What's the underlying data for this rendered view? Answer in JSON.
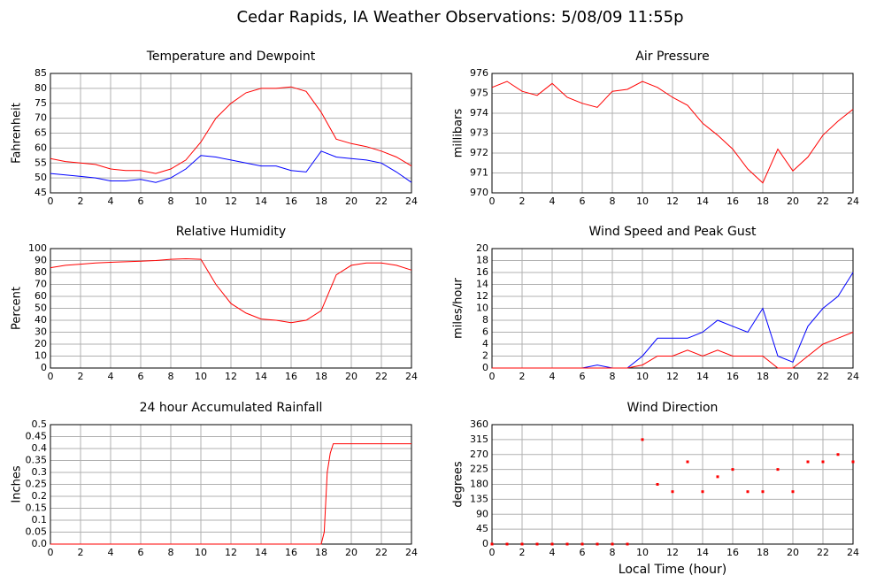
{
  "title": "Cedar Rapids, IA Weather Observations: 5/08/09 11:55p",
  "chart_data": [
    {
      "type": "line",
      "title": "Temperature and Dewpoint",
      "ylabel": "Fahrenheit",
      "x": [
        0,
        1,
        2,
        3,
        4,
        5,
        6,
        7,
        8,
        9,
        10,
        11,
        12,
        13,
        14,
        15,
        16,
        17,
        18,
        19,
        20,
        21,
        22,
        23,
        24
      ],
      "series": [
        {
          "name": "Temperature",
          "color": "#ff0000",
          "values": [
            56.5,
            55.5,
            55,
            54.5,
            53,
            52.5,
            52.5,
            51.5,
            53,
            56,
            62,
            70,
            75,
            78.5,
            80,
            80,
            80.5,
            79,
            72,
            63,
            61.5,
            60.5,
            59,
            57,
            54
          ]
        },
        {
          "name": "Dewpoint",
          "color": "#0000ff",
          "values": [
            51.5,
            51,
            50.5,
            50,
            49,
            49,
            49.5,
            48.5,
            50,
            53,
            57.5,
            57,
            56,
            55,
            54,
            54,
            52.5,
            52,
            59,
            57,
            56.5,
            56,
            55,
            52,
            48.5
          ]
        }
      ],
      "xlim": [
        0,
        24
      ],
      "xticks": [
        0,
        2,
        4,
        6,
        8,
        10,
        12,
        14,
        16,
        18,
        20,
        22,
        24
      ],
      "ylim": [
        45,
        85
      ],
      "yticks": [
        45,
        50,
        55,
        60,
        65,
        70,
        75,
        80,
        85
      ],
      "grid": true
    },
    {
      "type": "line",
      "title": "Air Pressure",
      "ylabel": "millibars",
      "x": [
        0,
        1,
        2,
        3,
        4,
        5,
        6,
        7,
        8,
        9,
        10,
        11,
        12,
        13,
        14,
        15,
        16,
        17,
        18,
        19,
        20,
        21,
        22,
        23,
        24
      ],
      "series": [
        {
          "name": "Pressure",
          "color": "#ff0000",
          "values": [
            975.3,
            975.6,
            975.1,
            974.9,
            975.5,
            974.8,
            974.5,
            974.3,
            975.1,
            975.2,
            975.6,
            975.3,
            974.8,
            974.4,
            973.5,
            972.9,
            972.2,
            971.2,
            970.5,
            972.2,
            971.1,
            971.8,
            972.9,
            973.6,
            974.2
          ]
        }
      ],
      "xlim": [
        0,
        24
      ],
      "xticks": [
        0,
        2,
        4,
        6,
        8,
        10,
        12,
        14,
        16,
        18,
        20,
        22,
        24
      ],
      "ylim": [
        970,
        976
      ],
      "yticks": [
        970,
        971,
        972,
        973,
        974,
        975,
        976
      ],
      "grid": true
    },
    {
      "type": "line",
      "title": "Relative Humidity",
      "ylabel": "Percent",
      "x": [
        0,
        1,
        2,
        3,
        4,
        5,
        6,
        7,
        8,
        9,
        10,
        11,
        12,
        13,
        14,
        15,
        16,
        17,
        18,
        19,
        20,
        21,
        22,
        23,
        24
      ],
      "series": [
        {
          "name": "Humidity",
          "color": "#ff0000",
          "values": [
            84,
            86,
            87,
            88,
            88.5,
            89,
            89.5,
            90,
            91,
            91.5,
            91,
            70,
            54,
            46,
            41,
            40,
            38,
            40,
            48,
            78,
            86,
            88,
            88,
            86,
            82
          ]
        }
      ],
      "xlim": [
        0,
        24
      ],
      "xticks": [
        0,
        2,
        4,
        6,
        8,
        10,
        12,
        14,
        16,
        18,
        20,
        22,
        24
      ],
      "ylim": [
        0,
        100
      ],
      "yticks": [
        0,
        10,
        20,
        30,
        40,
        50,
        60,
        70,
        80,
        90,
        100
      ],
      "grid": true
    },
    {
      "type": "line",
      "title": "Wind Speed and Peak Gust",
      "ylabel": "miles/hour",
      "x": [
        0,
        1,
        2,
        3,
        4,
        5,
        6,
        7,
        8,
        9,
        10,
        11,
        12,
        13,
        14,
        15,
        16,
        17,
        18,
        19,
        20,
        21,
        22,
        23,
        24
      ],
      "series": [
        {
          "name": "Peak Gust",
          "color": "#0000ff",
          "values": [
            0,
            0,
            0,
            0,
            0,
            0,
            0,
            0.5,
            0,
            0,
            2,
            5,
            5,
            5,
            6,
            8,
            7,
            6,
            10,
            2,
            1,
            7,
            10,
            12,
            16
          ]
        },
        {
          "name": "Wind Speed",
          "color": "#ff0000",
          "values": [
            0,
            0,
            0,
            0,
            0,
            0,
            0,
            0,
            0,
            0,
            0.5,
            2,
            2,
            3,
            2,
            3,
            2,
            2,
            2,
            0,
            0,
            2,
            4,
            5,
            6
          ]
        }
      ],
      "xlim": [
        0,
        24
      ],
      "xticks": [
        0,
        2,
        4,
        6,
        8,
        10,
        12,
        14,
        16,
        18,
        20,
        22,
        24
      ],
      "ylim": [
        0,
        20
      ],
      "yticks": [
        0,
        2,
        4,
        6,
        8,
        10,
        12,
        14,
        16,
        18,
        20
      ],
      "grid": true
    },
    {
      "type": "line",
      "title": "24 hour Accumulated Rainfall",
      "ylabel": "Inches",
      "x": [
        0,
        18,
        18.2,
        18.4,
        18.6,
        18.8,
        24
      ],
      "series": [
        {
          "name": "Rainfall",
          "color": "#ff0000",
          "values": [
            0,
            0,
            0.05,
            0.3,
            0.38,
            0.42,
            0.42
          ]
        }
      ],
      "xlim": [
        0,
        24
      ],
      "xticks": [
        0,
        2,
        4,
        6,
        8,
        10,
        12,
        14,
        16,
        18,
        20,
        22,
        24
      ],
      "ylim": [
        0,
        0.5
      ],
      "yticks": [
        {
          "value": 0,
          "label": "0.0"
        },
        0.05,
        0.1,
        0.15,
        0.2,
        0.25,
        0.3,
        0.35,
        0.4,
        0.45,
        0.5
      ],
      "grid": true
    },
    {
      "type": "scatter",
      "title": "Wind Direction",
      "ylabel": "degrees",
      "xlabel": "Local Time (hour)",
      "x": [
        0,
        1,
        2,
        3,
        4,
        5,
        6,
        7,
        8,
        9,
        10,
        11,
        12,
        13,
        14,
        15,
        16,
        17,
        18,
        19,
        20,
        21,
        22,
        23,
        24
      ],
      "series": [
        {
          "name": "Direction",
          "color": "#ff0000",
          "values": [
            0,
            0,
            0,
            0,
            0,
            0,
            0,
            0,
            0,
            0,
            315,
            180,
            158,
            248,
            158,
            203,
            225,
            158,
            158,
            225,
            158,
            248,
            248,
            270,
            248
          ]
        }
      ],
      "xlim": [
        0,
        24
      ],
      "xticks": [
        0,
        2,
        4,
        6,
        8,
        10,
        12,
        14,
        16,
        18,
        20,
        22,
        24
      ],
      "ylim": [
        0,
        360
      ],
      "yticks": [
        0,
        45,
        90,
        135,
        180,
        225,
        270,
        315,
        360
      ],
      "grid": true
    }
  ]
}
